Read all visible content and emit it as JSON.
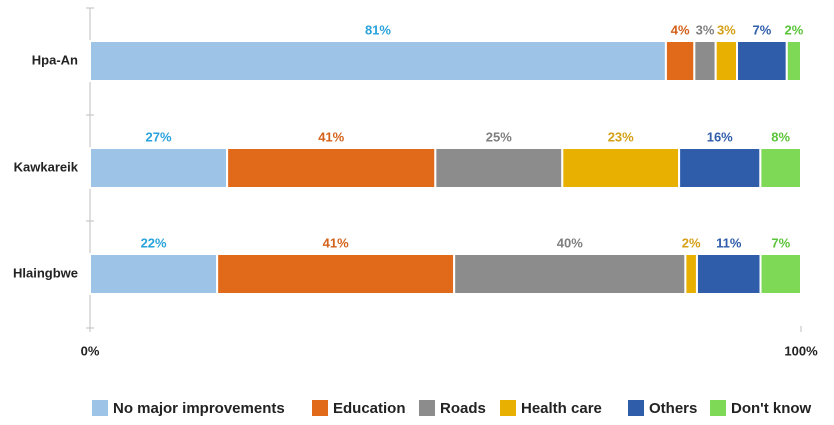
{
  "chart_data": {
    "type": "bar",
    "orientation": "horizontal",
    "stacked": true,
    "normalized": true,
    "categories": [
      "Hpa-An",
      "Kawkareik",
      "Hlaingbwe"
    ],
    "series": [
      {
        "name": "No major improvements",
        "color": "#9dc3e6",
        "label_color": "#29a3dc",
        "values": [
          81,
          27,
          22
        ],
        "value_labels": [
          "81%",
          "27%",
          "22%"
        ]
      },
      {
        "name": "Education",
        "color": "#e0691a",
        "label_color": "#d4611a",
        "values": [
          4,
          41,
          41
        ],
        "value_labels": [
          "4%",
          "41%",
          "41%"
        ]
      },
      {
        "name": "Roads",
        "color": "#8c8c8c",
        "label_color": "#7f7f7f",
        "values": [
          3,
          25,
          40
        ],
        "value_labels": [
          "3%",
          "25%",
          "40%"
        ]
      },
      {
        "name": "Health care",
        "color": "#e8b000",
        "label_color": "#d4a017",
        "values": [
          3,
          23,
          2
        ],
        "value_labels": [
          "3%",
          "23%",
          "2%"
        ]
      },
      {
        "name": "Others",
        "color": "#2f5daa",
        "label_color": "#2f5daa",
        "values": [
          7,
          16,
          11
        ],
        "value_labels": [
          "7%",
          "16%",
          "11%"
        ]
      },
      {
        "name": "Don't know",
        "color": "#7ed957",
        "label_color": "#5cc43a",
        "values": [
          2,
          8,
          7
        ],
        "value_labels": [
          "2%",
          "8%",
          "7%"
        ]
      }
    ],
    "xlim": [
      0,
      100
    ],
    "xticks": [
      {
        "value": 0,
        "label": "0%"
      },
      {
        "value": 100,
        "label": "100%"
      }
    ],
    "legend": "bottom"
  }
}
